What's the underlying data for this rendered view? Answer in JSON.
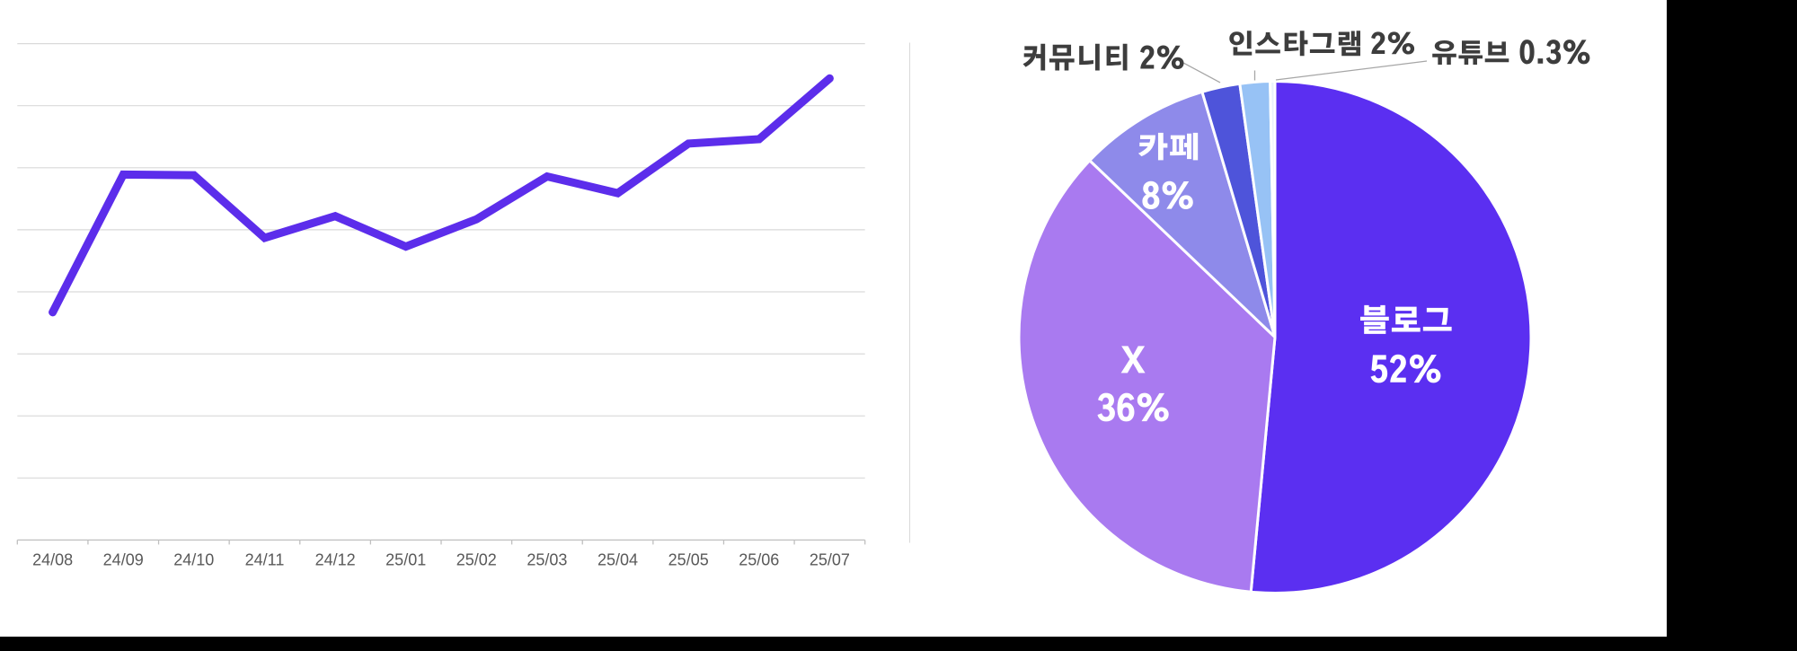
{
  "slide": {
    "background": "#ffffff",
    "frame_background": "#000000"
  },
  "chart_data": [
    {
      "type": "line",
      "title": "",
      "x": [
        "24/08",
        "24/09",
        "24/10",
        "24/11",
        "24/12",
        "25/01",
        "25/02",
        "25/03",
        "25/04",
        "25/05",
        "25/06",
        "25/07"
      ],
      "values": [
        3.67,
        5.89,
        5.88,
        4.87,
        5.22,
        4.73,
        5.17,
        5.86,
        5.59,
        6.39,
        6.46,
        7.44
      ],
      "ylim": [
        0,
        8
      ],
      "gridline_intervals": 8,
      "grid": "horizontal",
      "y_tick_labels": "none",
      "legend": "none",
      "series_color": "#5c2deb"
    },
    {
      "type": "pie",
      "start_angle_deg": 0,
      "direction": "clockwise",
      "legend": "none",
      "slices": [
        {
          "label": "블로그",
          "value": 52,
          "value_label": "52%",
          "arc_value": 51.6,
          "color": "#5b2ff1",
          "text_color": "#ffffff"
        },
        {
          "label": "X",
          "value": 36,
          "value_label": "36%",
          "arc_value": 35.7,
          "color": "#a97af0",
          "text_color": "#ffffff"
        },
        {
          "label": "카페",
          "value": 8,
          "value_label": "8%",
          "arc_value": 8.3,
          "color": "#8e8aea",
          "text_color": "#ffffff"
        },
        {
          "label": "커뮤니티",
          "value": 2,
          "value_label": "2%",
          "arc_value": 2.4,
          "color": "#4e54da",
          "text_color": "#3d3d3d"
        },
        {
          "label": "인스타그램",
          "value": 2,
          "value_label": "2%",
          "arc_value": 1.9,
          "color": "#97c2f5",
          "text_color": "#3d3d3d"
        },
        {
          "label": "유튜브",
          "value": 0.3,
          "value_label": "0.3%",
          "arc_value": 0.3,
          "color": "#eaf1fb",
          "text_color": "#3d3d3d"
        }
      ]
    }
  ]
}
